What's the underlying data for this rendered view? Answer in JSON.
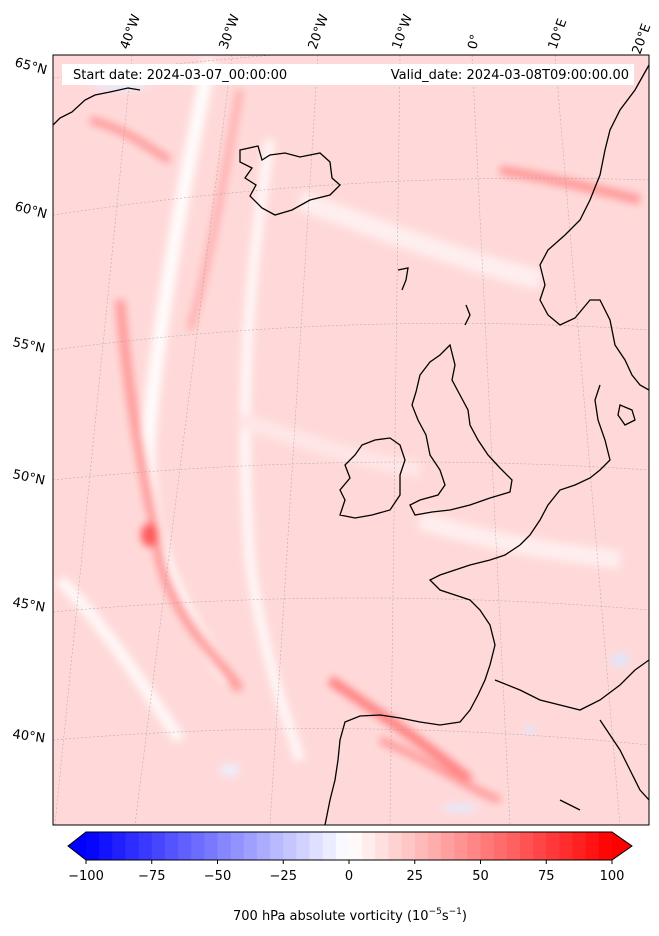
{
  "header": {
    "start_date": "Start date: 2024-03-07_00:00:00",
    "valid_date": "Valid_date: 2024-03-08T09:00:00.00"
  },
  "map": {
    "lon_labels": [
      "40°W",
      "30°W",
      "20°W",
      "10°W",
      "0°",
      "10°E",
      "20°E"
    ],
    "lat_labels": [
      "65°N",
      "60°N",
      "55°N",
      "50°N",
      "45°N",
      "40°N"
    ],
    "field": "700 hPa absolute vorticity",
    "colormap": "bwr"
  },
  "colorbar": {
    "ticks": [
      "−100",
      "−75",
      "−50",
      "−25",
      "0",
      "25",
      "50",
      "75",
      "100"
    ],
    "label_main": "700 hPa absolute vorticity (10",
    "label_exp1": "−5",
    "label_mid": "s",
    "label_exp2": "−1",
    "label_end": ")",
    "min": -100,
    "max": 100,
    "extend": "both"
  }
}
